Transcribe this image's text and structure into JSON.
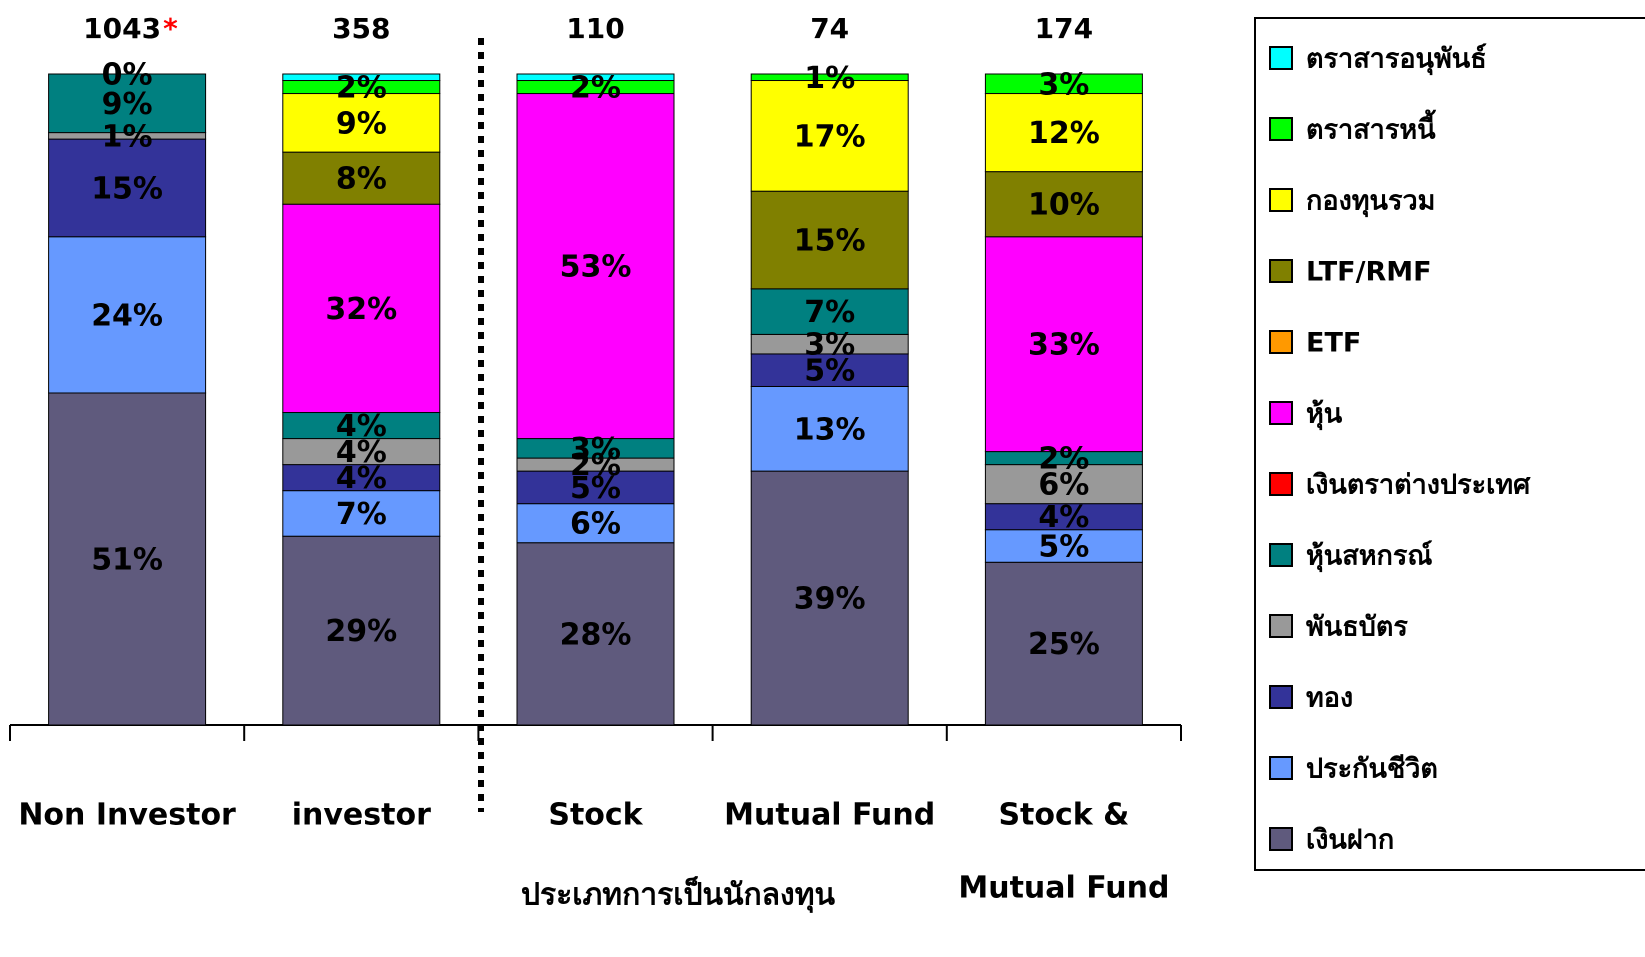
{
  "chart_data": {
    "type": "stacked_bar",
    "x_label": "ประเภทการเป็นนักลงทุน",
    "categories": [
      "Non Investor",
      "investor",
      "Stock",
      "Mutual Fund",
      [
        "Stock &",
        "Mutual Fund"
      ]
    ],
    "totals": [
      "1043",
      "358",
      "110",
      "74",
      "174"
    ],
    "totals_note": "*",
    "ylim": [
      0,
      100
    ],
    "series": [
      {
        "name": "เงินฝาก",
        "color": "#5f5a7d",
        "values": [
          51,
          29,
          28,
          39,
          25
        ],
        "value_labels": [
          "51%",
          "29%",
          "28%",
          "39%",
          "25%"
        ]
      },
      {
        "name": "ประกันชีวิต",
        "color": "#6699ff",
        "values": [
          24,
          7,
          6,
          13,
          5
        ],
        "value_labels": [
          "24%",
          "7%",
          "6%",
          "13%",
          "5%"
        ]
      },
      {
        "name": "ทอง",
        "color": "#333399",
        "values": [
          15,
          4,
          5,
          5,
          4
        ],
        "value_labels": [
          "15%",
          "4%",
          "5%",
          "5%",
          "4%"
        ]
      },
      {
        "name": "พันธบัตร",
        "color": "#999999",
        "values": [
          1,
          4,
          2,
          3,
          6
        ],
        "value_labels": [
          "1%",
          "4%",
          "2%",
          "3%",
          "6%"
        ]
      },
      {
        "name": "หุ้นสหกรณ์",
        "color": "#008080",
        "values": [
          9,
          4,
          3,
          7,
          2
        ],
        "value_labels": [
          "9%",
          "4%",
          "3%",
          "7%",
          "2%"
        ]
      },
      {
        "name": "เงินตราต่างประเทศ",
        "color": "#ff0000",
        "values": [
          null,
          null,
          null,
          null,
          null
        ],
        "value_labels": [
          null,
          null,
          null,
          null,
          null
        ]
      },
      {
        "name": "หุ้น",
        "color": "#ff00ff",
        "values": [
          null,
          32,
          53,
          null,
          33
        ],
        "value_labels": [
          null,
          "32%",
          "53%",
          null,
          "33%"
        ]
      },
      {
        "name": "ETF",
        "color": "#ff9900",
        "values": [
          null,
          null,
          null,
          null,
          null
        ],
        "value_labels": [
          null,
          null,
          null,
          null,
          null
        ]
      },
      {
        "name": "LTF/RMF",
        "color": "#808000",
        "values": [
          null,
          8,
          null,
          15,
          10
        ],
        "value_labels": [
          null,
          "8%",
          null,
          "15%",
          "10%"
        ]
      },
      {
        "name": "กองทุนรวม",
        "color": "#ffff00",
        "values": [
          null,
          9,
          null,
          17,
          12
        ],
        "value_labels": [
          null,
          "9%",
          null,
          "17%",
          "12%"
        ]
      },
      {
        "name": "ตราสารหนี้",
        "color": "#00ff00",
        "values": [
          null,
          2,
          2,
          1,
          3
        ],
        "value_labels": [
          null,
          "2%",
          "2%",
          "1%",
          "3%"
        ]
      },
      {
        "name": "ตราสารอนุพันธ์",
        "color": "#00ffff",
        "values": [
          0,
          1,
          1,
          null,
          null
        ],
        "value_labels": [
          "0%",
          null,
          null,
          null,
          null
        ]
      }
    ]
  }
}
